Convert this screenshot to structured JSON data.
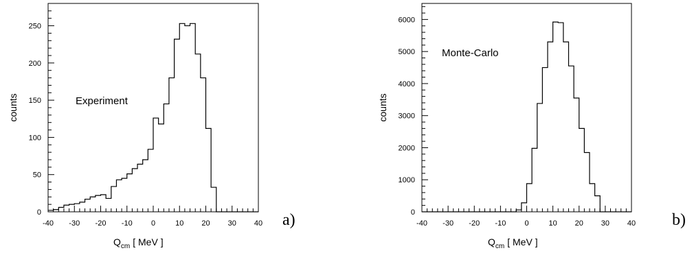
{
  "chart_data": [
    {
      "type": "histogram",
      "panel_label": "a)",
      "annotation": "Experiment",
      "ylabel": "counts",
      "xlabel": {
        "main": "Q",
        "sub": "cm",
        "unit": "[ MeV ]"
      },
      "xlim": [
        -40,
        40
      ],
      "ylim": [
        0,
        280
      ],
      "x_ticks": [
        -40,
        -30,
        -20,
        -10,
        0,
        10,
        20,
        30,
        40
      ],
      "y_ticks": [
        0,
        50,
        100,
        150,
        200,
        250
      ],
      "bin_width": 2,
      "bin_edges_start": -40,
      "values": [
        2,
        3,
        6,
        9,
        10,
        11,
        13,
        17,
        20,
        22,
        23,
        18,
        34,
        43,
        45,
        51,
        58,
        64,
        70,
        84,
        126,
        118,
        145,
        180,
        232,
        253,
        250,
        253,
        212,
        180,
        112,
        33,
        0,
        0,
        0,
        0,
        0,
        0,
        0,
        0
      ]
    },
    {
      "type": "histogram",
      "panel_label": "b)",
      "annotation": "Monte-Carlo",
      "ylabel": "counts",
      "xlabel": {
        "main": "Q",
        "sub": "cm",
        "unit": "[ MeV ]"
      },
      "xlim": [
        -40,
        40
      ],
      "ylim": [
        0,
        6500
      ],
      "x_ticks": [
        -40,
        -30,
        -20,
        -10,
        0,
        10,
        20,
        30,
        40
      ],
      "y_ticks": [
        0,
        1000,
        2000,
        3000,
        4000,
        5000,
        6000
      ],
      "bin_width": 2,
      "bin_edges_start": -40,
      "values": [
        0,
        0,
        0,
        0,
        0,
        0,
        0,
        0,
        0,
        0,
        0,
        0,
        0,
        0,
        0,
        0,
        0,
        0,
        60,
        280,
        880,
        1980,
        3380,
        4500,
        5300,
        5920,
        5900,
        5300,
        4550,
        3550,
        2600,
        1850,
        880,
        500,
        0,
        0,
        0,
        0,
        0,
        0
      ]
    }
  ]
}
